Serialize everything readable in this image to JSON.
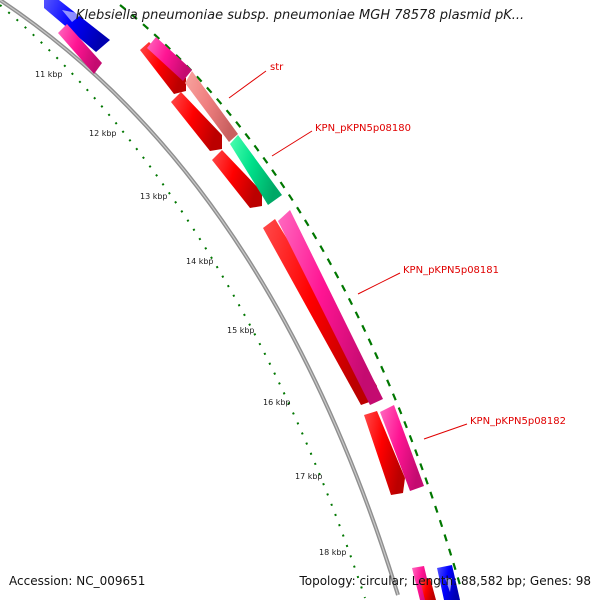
{
  "title": "Klebsiella pneumoniae subsp. pneumoniae MGH 78578 plasmid pK...",
  "footer": {
    "accession_label": "Accession:",
    "accession": "NC_009651",
    "topology_label": "Topology:",
    "topology": "circular",
    "length_label": "Length:",
    "length": "88,582 bp",
    "genes_label": "Genes:",
    "genes": "98"
  },
  "ticks": [
    "11 kbp",
    "12 kbp",
    "13 kbp",
    "14 kbp",
    "15 kbp",
    "16 kbp",
    "17 kbp",
    "18 kbp"
  ],
  "gene_labels": [
    "str",
    "KPN_pKPN5p08180",
    "KPN_pKPN5p08181",
    "KPN_pKPN5p08182"
  ],
  "colors": {
    "backbone": "#8c8c8c",
    "cds": "#ff0000",
    "gene_magenta": "#ff1493",
    "gene_blue": "#0000ff",
    "str_gene": "#f08080",
    "kpn08180_gene": "#00e08a",
    "tick_green": "#007700",
    "label_red": "#e00000"
  }
}
